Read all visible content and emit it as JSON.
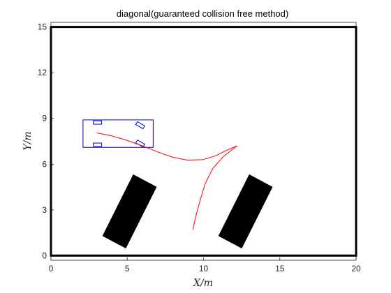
{
  "chart_data": {
    "type": "line",
    "title": "diagonal(guaranteed collision free method)",
    "xlabel": "X/m",
    "ylabel": "Y/m",
    "xlim": [
      0,
      20
    ],
    "ylim": [
      -0.3,
      15.3
    ],
    "xticks": [
      "0",
      "5",
      "10",
      "15",
      "20"
    ],
    "yticks": [
      "0",
      "3",
      "6",
      "9",
      "12",
      "15"
    ],
    "grid": false,
    "colors": {
      "path": "#ff0000",
      "vehicle": "#0000cc",
      "obstacle": "#000000",
      "boundary": "#000000"
    },
    "boundary": [
      [
        0,
        0
      ],
      [
        20,
        0
      ],
      [
        20,
        15
      ],
      [
        0,
        15
      ]
    ],
    "obstacles": [
      [
        [
          5.4,
          5.3
        ],
        [
          6.9,
          4.5
        ],
        [
          4.9,
          0.5
        ],
        [
          3.4,
          1.3
        ]
      ],
      [
        [
          13.0,
          5.3
        ],
        [
          14.5,
          4.5
        ],
        [
          12.5,
          0.5
        ],
        [
          11.0,
          1.3
        ]
      ]
    ],
    "vehicle_box": [
      [
        2.1,
        7.1
      ],
      [
        6.7,
        7.1
      ],
      [
        6.7,
        8.9
      ],
      [
        2.1,
        8.9
      ]
    ],
    "wheels": [
      {
        "center": [
          3.05,
          8.73
        ],
        "angle_deg": 0
      },
      {
        "center": [
          3.05,
          7.27
        ],
        "angle_deg": 0
      },
      {
        "center": [
          5.85,
          8.55
        ],
        "angle_deg": -30
      },
      {
        "center": [
          5.85,
          7.35
        ],
        "angle_deg": -30
      }
    ],
    "path": [
      [
        3.0,
        8.05
      ],
      [
        4.0,
        7.85
      ],
      [
        5.0,
        7.55
      ],
      [
        6.0,
        7.2
      ],
      [
        7.0,
        6.8
      ],
      [
        8.0,
        6.45
      ],
      [
        9.0,
        6.25
      ],
      [
        10.0,
        6.3
      ],
      [
        10.8,
        6.55
      ],
      [
        11.5,
        6.9
      ],
      [
        12.2,
        7.2
      ]
    ],
    "path2": [
      [
        12.2,
        7.2
      ],
      [
        11.3,
        6.5
      ],
      [
        10.6,
        5.7
      ],
      [
        10.1,
        4.7
      ],
      [
        9.8,
        3.7
      ],
      [
        9.5,
        2.6
      ],
      [
        9.3,
        1.7
      ]
    ]
  }
}
